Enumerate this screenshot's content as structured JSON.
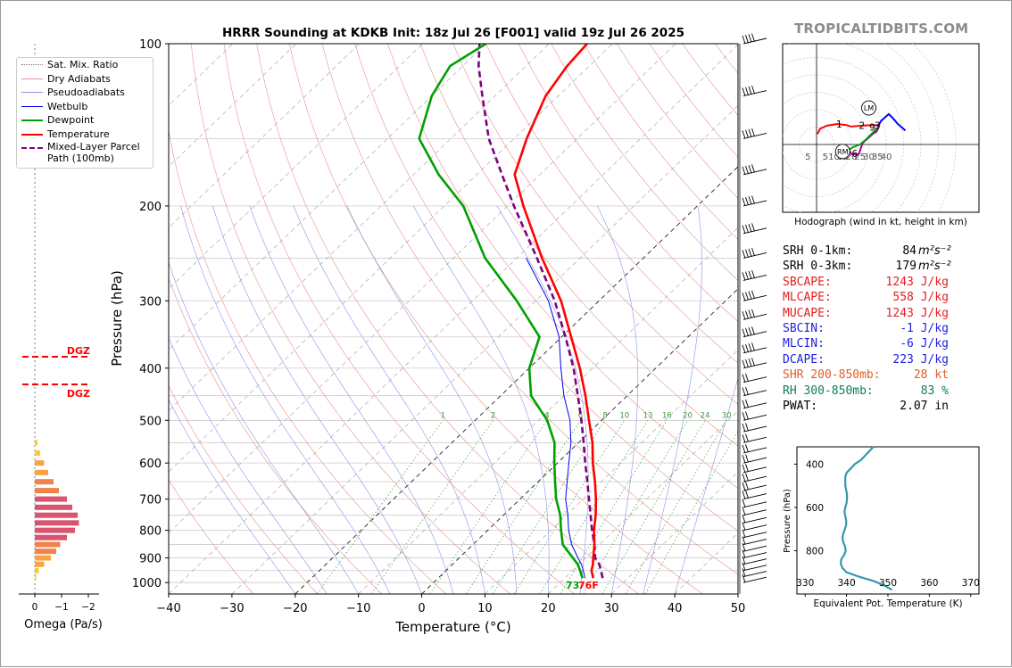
{
  "brand": "TROPICALTIDBITS.COM",
  "title": "HRRR Sounding at KDKB Init: 18z Jul 26 [F001] valid 19z Jul 26 2025",
  "skewt": {
    "xlabel": "Temperature (°C)",
    "ylabel": "Pressure (hPa)",
    "x_ticks": [
      "−40",
      "−30",
      "−20",
      "−10",
      "0",
      "10",
      "20",
      "30",
      "40",
      "50"
    ],
    "y_ticks": [
      "100",
      "200",
      "300",
      "400",
      "500",
      "600",
      "700",
      "800",
      "900",
      "1000"
    ],
    "mixing_ratio_labels": [
      "1",
      "2",
      "4",
      "6",
      "8",
      "10",
      "13",
      "16",
      "20",
      "24",
      "30",
      "36"
    ],
    "sfc_dewpoint_label": "73",
    "sfc_temp_label": "76F",
    "dgz_label": "DGZ"
  },
  "legend": [
    {
      "label": "Sat. Mix. Ratio",
      "color": "#777777",
      "style": "dotted"
    },
    {
      "label": "Dry Adiabats",
      "color": "#e89090",
      "style": "solid"
    },
    {
      "label": "Pseudoadiabats",
      "color": "#9090e8",
      "style": "solid"
    },
    {
      "label": "Wetbulb",
      "color": "#0000ee",
      "style": "solid"
    },
    {
      "label": "Dewpoint",
      "color": "#00a000",
      "style": "thick"
    },
    {
      "label": "Temperature",
      "color": "#ff0000",
      "style": "thick"
    },
    {
      "label": "Mixed-Layer Parcel Path (100mb)",
      "color": "#800080",
      "style": "dashed"
    }
  ],
  "omega": {
    "xlabel": "Omega (Pa/s)",
    "x_ticks": [
      "0",
      "−1",
      "−2"
    ]
  },
  "hodograph": {
    "caption": "Hodograph (wind in kt, height in km)",
    "ring_labels": [
      "5",
      "5",
      "10",
      "15",
      "20",
      "25",
      "30",
      "35",
      "40"
    ],
    "height_labels": [
      "1",
      "2",
      "3",
      "6",
      "9"
    ],
    "rm_label": "RM",
    "lm_label": "LM"
  },
  "stats": [
    {
      "label": "SRH 0-1km:",
      "value": "84",
      "unit": "m²s⁻²",
      "color": "#000000"
    },
    {
      "label": "SRH 0-3km:",
      "value": "179",
      "unit": "m²s⁻²",
      "color": "#000000"
    },
    {
      "label": "SBCAPE:",
      "value": "1243 J/kg",
      "unit": "",
      "color": "#e02020"
    },
    {
      "label": "MLCAPE:",
      "value": "558 J/kg",
      "unit": "",
      "color": "#e02020"
    },
    {
      "label": "MUCAPE:",
      "value": "1243 J/kg",
      "unit": "",
      "color": "#e02020"
    },
    {
      "label": "SBCIN:",
      "value": "-1 J/kg",
      "unit": "",
      "color": "#2020e0"
    },
    {
      "label": "MLCIN:",
      "value": "-6 J/kg",
      "unit": "",
      "color": "#2020e0"
    },
    {
      "label": "DCAPE:",
      "value": "223 J/kg",
      "unit": "",
      "color": "#2020e0"
    },
    {
      "label": "SHR 200-850mb:",
      "value": "28 kt",
      "unit": "",
      "color": "#e0602a"
    },
    {
      "label": "RH 300-850mb:",
      "value": "83 %",
      "unit": "",
      "color": "#108050"
    },
    {
      "label": "PWAT:",
      "value": "2.07 in",
      "unit": "",
      "color": "#000000"
    }
  ],
  "theta_e": {
    "xlabel": "Equivalent Pot. Temperature (K)",
    "ylabel": "Pressure (hPa)",
    "x_ticks": [
      "330",
      "340",
      "350",
      "360",
      "370"
    ],
    "y_ticks": [
      "400",
      "600",
      "800"
    ]
  },
  "chart_data": [
    {
      "type": "line",
      "title": "HRRR Sounding at KDKB Init: 18z Jul 26 [F001] valid 19z Jul 26 2025",
      "xlabel": "Temperature (°C)",
      "ylabel": "Pressure (hPa)",
      "xlim": [
        -40,
        50
      ],
      "ylim": [
        1050,
        100
      ],
      "y_scale": "log",
      "skew": "skew-T",
      "grid": true,
      "legend": "top-left",
      "series": [
        {
          "name": "Temperature",
          "pressure": [
            981,
            950,
            925,
            900,
            850,
            800,
            750,
            700,
            650,
            600,
            550,
            500,
            450,
            400,
            350,
            300,
            250,
            200,
            175,
            150,
            125,
            110,
            100
          ],
          "values": [
            24.5,
            23.0,
            22.2,
            21.2,
            19.2,
            16.8,
            14.6,
            12.0,
            9.0,
            5.6,
            2.2,
            -2.0,
            -6.6,
            -12.0,
            -18.5,
            -26.0,
            -36.0,
            -47.5,
            -54.0,
            -58.0,
            -62.0,
            -63.5,
            -64.0
          ],
          "color": "#ff0000"
        },
        {
          "name": "Dewpoint",
          "pressure": [
            981,
            950,
            925,
            900,
            850,
            800,
            750,
            700,
            650,
            600,
            550,
            500,
            450,
            400,
            350,
            300,
            250,
            200,
            175,
            150,
            125,
            110,
            100
          ],
          "values": [
            22.8,
            21.2,
            19.8,
            18.0,
            14.2,
            11.6,
            9.0,
            5.7,
            2.7,
            -0.5,
            -3.8,
            -8.6,
            -15.2,
            -20.0,
            -23.5,
            -33.0,
            -45.0,
            -57.0,
            -66.0,
            -75.0,
            -80.0,
            -82.0,
            -80.0
          ],
          "color": "#00a000"
        },
        {
          "name": "Wetbulb",
          "pressure": [
            981,
            950,
            925,
            900,
            850,
            800,
            750,
            700,
            650,
            600,
            550,
            500,
            450,
            400,
            350,
            300,
            250
          ],
          "values": [
            23.2,
            21.7,
            20.4,
            18.8,
            15.6,
            12.8,
            10.2,
            7.2,
            4.6,
            1.8,
            -1.2,
            -5.0,
            -10.0,
            -15.0,
            -20.4,
            -28.0,
            -38.5
          ],
          "color": "#0000ee"
        },
        {
          "name": "Mixed-Layer Parcel Path (100mb)",
          "pressure": [
            981,
            950,
            925,
            900,
            850,
            800,
            750,
            700,
            650,
            600,
            550,
            500,
            450,
            400,
            350,
            300,
            250,
            200,
            175,
            150,
            125,
            110,
            100
          ],
          "values": [
            26.0,
            24.5,
            23.2,
            21.5,
            19.2,
            16.5,
            13.8,
            10.9,
            7.8,
            4.4,
            0.8,
            -3.2,
            -7.8,
            -13.0,
            -19.4,
            -27.0,
            -36.8,
            -49.0,
            -56.0,
            -64.0,
            -72.0,
            -77.5,
            -81.0
          ],
          "color": "#800080"
        }
      ]
    },
    {
      "type": "bar",
      "title": "",
      "xlabel": "Omega (Pa/s)",
      "orientation": "horizontal",
      "xlim": [
        0.3,
        -2.1
      ],
      "pressure": [
        975,
        950,
        925,
        900,
        875,
        850,
        825,
        800,
        775,
        750,
        725,
        700,
        675,
        650,
        625,
        600,
        575,
        550
      ],
      "values": [
        -0.05,
        -0.15,
        -0.35,
        -0.6,
        -0.8,
        -0.95,
        -1.2,
        -1.5,
        -1.65,
        -1.6,
        -1.4,
        -1.2,
        -0.9,
        -0.7,
        -0.5,
        -0.35,
        -0.2,
        -0.1
      ]
    },
    {
      "type": "line",
      "title": "Hodograph (wind in kt, height in km)",
      "xlabel": "",
      "ylabel": "",
      "series": [
        {
          "name": "0-3 km",
          "u": [
            0.5,
            2.0,
            6.0,
            12.0,
            17.0,
            20.0,
            26.0,
            31.0,
            35.0,
            36.5
          ],
          "v": [
            6.0,
            9.0,
            10.8,
            11.8,
            11.2,
            10.3,
            10.8,
            11.1,
            11.2,
            11.0
          ],
          "color": "#ff0000"
        },
        {
          "name": "3-6 km",
          "u": [
            35.5,
            34.5,
            32.0,
            28.5,
            26.5,
            25.5,
            24.5,
            23.5,
            21.5,
            20.0,
            18.5
          ],
          "v": [
            9.5,
            7.5,
            5.8,
            2.7,
            0.8,
            -2.0,
            -5.0,
            -6.0,
            -5.6,
            -5.5,
            -3.0
          ],
          "color": "#a000a0"
        },
        {
          "name": "6-9 km",
          "u": [
            18.5,
            21.0,
            25.0,
            28.5,
            31.5,
            35.0
          ],
          "v": [
            -3.0,
            -1.5,
            0.0,
            3.0,
            6.0,
            9.5
          ],
          "color": "#00a000"
        },
        {
          "name": "9-12 km",
          "u": [
            35.0,
            37.0,
            41.5,
            44.0,
            46.5,
            51.0
          ],
          "v": [
            10.0,
            13.5,
            17.5,
            15.0,
            12.0,
            8.0
          ],
          "color": "#0000ff"
        }
      ],
      "storm_motion": {
        "RM": [
          15,
          -4
        ],
        "LM": [
          30,
          21
        ]
      }
    },
    {
      "type": "line",
      "title": "",
      "xlabel": "Equivalent Pot. Temperature (K)",
      "ylabel": "Pressure (hPa)",
      "xlim": [
        328,
        372
      ],
      "ylim": [
        1000,
        320
      ],
      "series": [
        {
          "name": "Equivalent Pot. Temperature",
          "pressure": [
            981,
            960,
            940,
            920,
            900,
            880,
            860,
            840,
            820,
            800,
            780,
            760,
            740,
            720,
            700,
            680,
            660,
            640,
            620,
            600,
            580,
            560,
            540,
            520,
            500,
            480,
            460,
            440,
            420,
            400,
            380,
            360,
            340,
            320
          ],
          "values": [
            351.0,
            349.0,
            346.5,
            343.0,
            340.0,
            339.0,
            338.6,
            338.7,
            339.4,
            339.8,
            339.6,
            339.2,
            339.0,
            339.2,
            339.6,
            339.9,
            339.9,
            339.7,
            339.5,
            339.7,
            340.0,
            340.1,
            340.1,
            339.9,
            339.7,
            339.7,
            339.7,
            340.0,
            341.0,
            342.0,
            343.5,
            344.5,
            345.5,
            346.5
          ],
          "color": "#3399aa"
        }
      ]
    }
  ]
}
